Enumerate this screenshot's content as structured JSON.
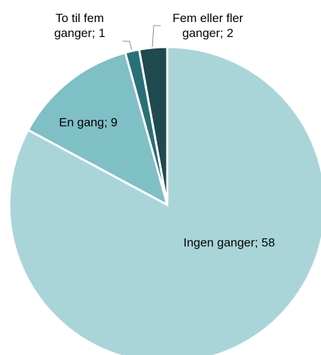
{
  "chart_data": {
    "type": "pie",
    "values": [
      58,
      9,
      1,
      2
    ],
    "value_labels": [
      "Ingen ganger; 58",
      "En gang; 9",
      "To til fem ganger; 1",
      "Fem eller fler ganger; 2"
    ],
    "colors": [
      "#a9d5d9",
      "#7fbfc6",
      "#2a7078",
      "#1f4a50"
    ]
  }
}
